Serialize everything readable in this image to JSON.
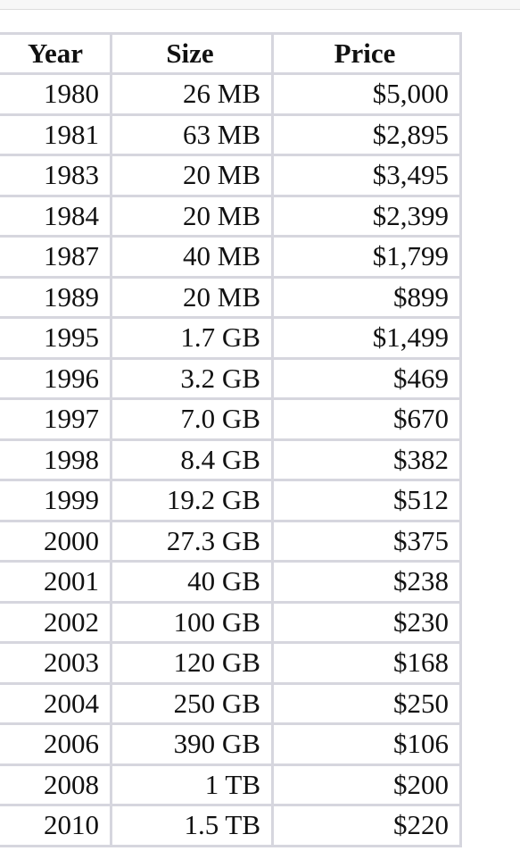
{
  "table": {
    "headers": {
      "year": "Year",
      "size": "Size",
      "price": "Price"
    },
    "rows": [
      {
        "year": "1980",
        "size": "26 MB",
        "price": "$5,000"
      },
      {
        "year": "1981",
        "size": "63 MB",
        "price": "$2,895"
      },
      {
        "year": "1983",
        "size": "20 MB",
        "price": "$3,495"
      },
      {
        "year": "1984",
        "size": "20 MB",
        "price": "$2,399"
      },
      {
        "year": "1987",
        "size": "40 MB",
        "price": "$1,799"
      },
      {
        "year": "1989",
        "size": "20 MB",
        "price": "$899"
      },
      {
        "year": "1995",
        "size": "1.7 GB",
        "price": "$1,499"
      },
      {
        "year": "1996",
        "size": "3.2 GB",
        "price": "$469"
      },
      {
        "year": "1997",
        "size": "7.0 GB",
        "price": "$670"
      },
      {
        "year": "1998",
        "size": "8.4 GB",
        "price": "$382"
      },
      {
        "year": "1999",
        "size": "19.2 GB",
        "price": "$512"
      },
      {
        "year": "2000",
        "size": "27.3 GB",
        "price": "$375"
      },
      {
        "year": "2001",
        "size": "40 GB",
        "price": "$238"
      },
      {
        "year": "2002",
        "size": "100 GB",
        "price": "$230"
      },
      {
        "year": "2003",
        "size": "120 GB",
        "price": "$168"
      },
      {
        "year": "2004",
        "size": "250 GB",
        "price": "$250"
      },
      {
        "year": "2006",
        "size": "390 GB",
        "price": "$106"
      },
      {
        "year": "2008",
        "size": "1 TB",
        "price": "$200"
      },
      {
        "year": "2010",
        "size": "1.5 TB",
        "price": "$220"
      }
    ]
  }
}
